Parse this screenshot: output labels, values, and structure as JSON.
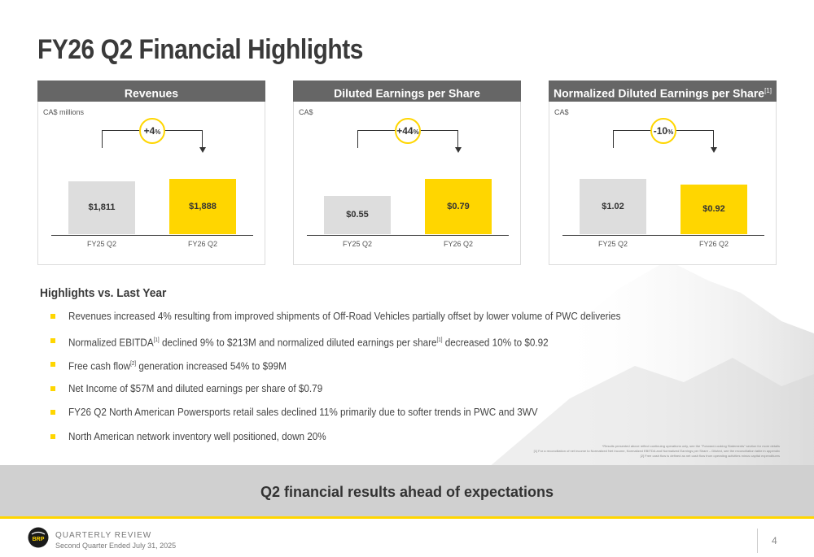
{
  "title": "FY26 Q2 Financial Highlights",
  "panels": [
    {
      "heading": "Revenues",
      "heading_sup": "",
      "unit": "CA$ millions",
      "change_num": "+4",
      "change_pct": "%",
      "chart_data": {
        "type": "bar",
        "categories": [
          "FY25 Q2",
          "FY26 Q2"
        ],
        "values": [
          1811,
          1888
        ],
        "labels": [
          "$1,811",
          "$1,888"
        ]
      }
    },
    {
      "heading": "Diluted Earnings per Share",
      "heading_sup": "",
      "unit": "CA$",
      "change_num": "+44",
      "change_pct": "%",
      "chart_data": {
        "type": "bar",
        "categories": [
          "FY25 Q2",
          "FY26 Q2"
        ],
        "values": [
          0.55,
          0.79
        ],
        "labels": [
          "$0.55",
          "$0.79"
        ]
      }
    },
    {
      "heading": "Normalized Diluted Earnings per Share",
      "heading_sup": "[1]",
      "unit": "CA$",
      "change_num": "-10",
      "change_pct": "%",
      "chart_data": {
        "type": "bar",
        "categories": [
          "FY25 Q2",
          "FY26 Q2"
        ],
        "values": [
          1.02,
          0.92
        ],
        "labels": [
          "$1.02",
          "$0.92"
        ]
      }
    }
  ],
  "highlights": {
    "title": "Highlights vs. Last Year",
    "bullets": [
      {
        "a": "Revenues increased 4% resulting from improved shipments of Off-Road Vehicles partially offset by lower volume of PWC deliveries",
        "s1": "",
        "b": "",
        "s2": "",
        "c": ""
      },
      {
        "a": "Normalized EBITDA",
        "s1": "[1]",
        "b": " declined 9% to $213M and normalized diluted earnings per share",
        "s2": "[1]",
        "c": " decreased 10% to $0.92"
      },
      {
        "a": "Free cash flow",
        "s1": "[2]",
        "b": " generation increased 54% to $99M",
        "s2": "",
        "c": ""
      },
      {
        "a": "Net Income of $57M and diluted earnings per share of $0.79",
        "s1": "",
        "b": "",
        "s2": "",
        "c": ""
      },
      {
        "a": "FY26 Q2 North American Powersports retail sales declined 11% primarily due to softer trends in PWC and 3WV",
        "s1": "",
        "b": "",
        "s2": "",
        "c": ""
      },
      {
        "a": "North American network inventory well positioned, down 20%",
        "s1": "",
        "b": "",
        "s2": "",
        "c": ""
      }
    ]
  },
  "footnotes": [
    "*Results presented above reflect continuing operations only, see the \"Forward-Looking Statements\" section for more details",
    "[1] For a reconciliation of net income to Normalized Net Income, Normalized EBITDA and Normalized Earnings per Share – Diluted, see the reconciliation table in appendix",
    "[2] Free cash flow is defined as net cash flow from operating activities minus capital expenditures"
  ],
  "banner": "Q2 financial results ahead of expectations",
  "footer": {
    "title": "QUARTERLY REVIEW",
    "subtitle": "Second Quarter Ended July 31, 2025",
    "logo_text": "BRP",
    "page_number": "4"
  },
  "colors": {
    "accent": "#ffd600",
    "prior_bar": "#dddddd",
    "header": "#666666"
  }
}
